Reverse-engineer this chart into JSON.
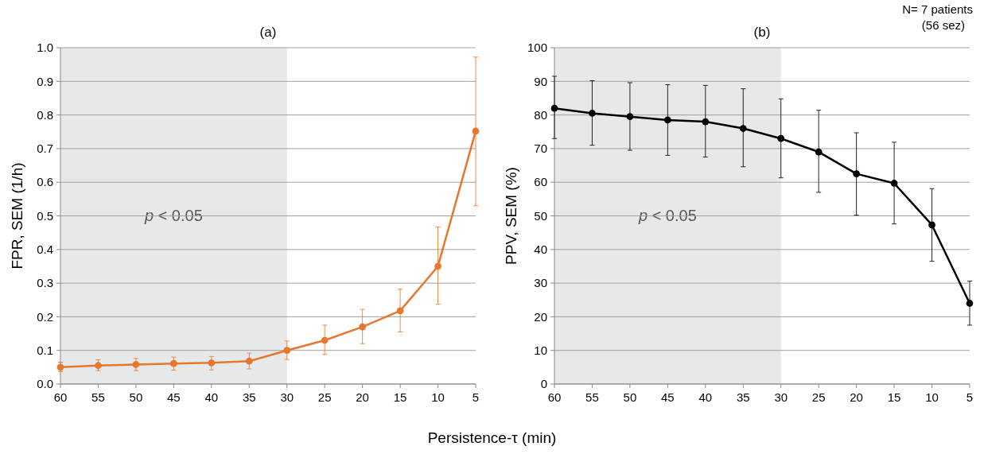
{
  "chart_data": [
    {
      "type": "line",
      "title": "(a)",
      "xlabel": "Persistence-τ (min)",
      "ylabel": "FPR, SEM (1/h)",
      "x": [
        60,
        55,
        50,
        45,
        40,
        35,
        30,
        25,
        20,
        15,
        10,
        5
      ],
      "xlim": [
        60,
        5
      ],
      "xticks": [
        60,
        55,
        50,
        45,
        40,
        35,
        30,
        25,
        20,
        15,
        10,
        5
      ],
      "ylim": [
        0,
        1
      ],
      "yticks": [
        {
          "value": 0,
          "label": "0.0"
        },
        0.1,
        0.2,
        0.3,
        0.4,
        0.5,
        0.6,
        0.7,
        0.8,
        0.9,
        {
          "value": 1,
          "label": "1.0"
        }
      ],
      "grid": "y",
      "marker": "circle",
      "line_style": "solid",
      "bands": [
        {
          "axis": "x",
          "from": 60,
          "to": 30,
          "label": "p < 0.05",
          "color": "#e7e8ea"
        }
      ],
      "series": [
        {
          "color": "#e8772e",
          "values": [
            0.05,
            0.055,
            0.058,
            0.061,
            0.063,
            0.068,
            0.1,
            0.13,
            0.17,
            0.218,
            0.35,
            0.752
          ],
          "errors": [
            [
              0.037,
              0.065
            ],
            [
              0.04,
              0.072
            ],
            [
              0.04,
              0.076
            ],
            [
              0.041,
              0.08
            ],
            [
              0.042,
              0.082
            ],
            [
              0.045,
              0.092
            ],
            [
              0.073,
              0.128
            ],
            [
              0.088,
              0.175
            ],
            [
              0.12,
              0.222
            ],
            [
              0.155,
              0.282
            ],
            [
              0.237,
              0.467
            ],
            [
              0.53,
              0.972
            ]
          ]
        }
      ]
    },
    {
      "type": "line",
      "title": "(b)",
      "ylabel": "PPV, SEM (%)",
      "annotations": [
        "N= 7 patients\n(56 sez)"
      ],
      "x": [
        60,
        55,
        50,
        45,
        40,
        35,
        30,
        25,
        20,
        15,
        10,
        5
      ],
      "xlim": [
        60,
        5
      ],
      "xticks": [
        60,
        55,
        50,
        45,
        40,
        35,
        30,
        25,
        20,
        15,
        10,
        5
      ],
      "ylim": [
        0,
        100
      ],
      "yticks": [
        0,
        10,
        20,
        30,
        40,
        50,
        60,
        70,
        80,
        90,
        100
      ],
      "grid": "y",
      "marker": "circle",
      "line_style": "solid",
      "bands": [
        {
          "axis": "x",
          "from": 60,
          "to": 30,
          "label": "p < 0.05",
          "color": "#e7e8ea"
        }
      ],
      "series": [
        {
          "color": "#000000",
          "values": [
            82,
            80.5,
            79.5,
            78.5,
            78,
            76,
            73,
            69,
            62.5,
            59.7,
            47.3,
            24
          ],
          "errors": [
            [
              73,
              91.5
            ],
            [
              71,
              90.2
            ],
            [
              69.5,
              89.6
            ],
            [
              68,
              89
            ],
            [
              67.5,
              88.8
            ],
            [
              64.6,
              87.8
            ],
            [
              61.3,
              84.8
            ],
            [
              57,
              81.4
            ],
            [
              50.2,
              74.7
            ],
            [
              47.6,
              71.9
            ],
            [
              36.5,
              58.1
            ],
            [
              17.5,
              30.6
            ]
          ]
        }
      ]
    }
  ]
}
